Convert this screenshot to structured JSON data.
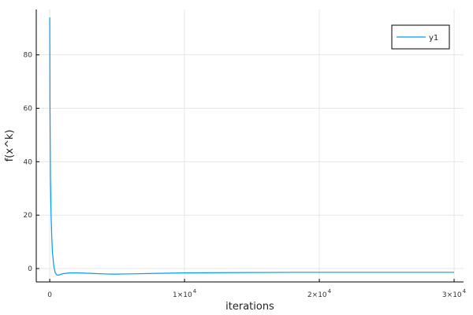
{
  "chart_data": {
    "type": "line",
    "title": "",
    "xlabel": "iterations",
    "ylabel": "f(x^k)",
    "xlim": [
      -1000,
      30700
    ],
    "ylim": [
      -5,
      97
    ],
    "grid": true,
    "legend": {
      "placement": "top-right",
      "entries": [
        "y1"
      ]
    },
    "x_ticks": [
      {
        "value": 0,
        "label": "0"
      },
      {
        "value": 10000,
        "label": "1×10",
        "exp": "4"
      },
      {
        "value": 20000,
        "label": "2×10",
        "exp": "4"
      },
      {
        "value": 30000,
        "label": "3×10",
        "exp": "4"
      }
    ],
    "y_ticks": [
      {
        "value": 0,
        "label": "0"
      },
      {
        "value": 20,
        "label": "20"
      },
      {
        "value": 40,
        "label": "40"
      },
      {
        "value": 60,
        "label": "60"
      },
      {
        "value": 80,
        "label": "80"
      }
    ],
    "series": [
      {
        "name": "y1",
        "color": "#009af9",
        "x": [
          0,
          20,
          50,
          100,
          150,
          200,
          300,
          400,
          500,
          600,
          800,
          1000,
          1500,
          2000,
          3000,
          4000,
          4700,
          6000,
          8000,
          10000,
          14000,
          18000,
          22000,
          26000,
          30000
        ],
        "y": [
          94,
          60,
          35,
          20,
          12,
          6,
          1,
          -1.5,
          -2.3,
          -2.5,
          -2.2,
          -1.9,
          -1.6,
          -1.6,
          -1.8,
          -2.0,
          -2.1,
          -2.0,
          -1.8,
          -1.6,
          -1.5,
          -1.4,
          -1.4,
          -1.4,
          -1.4
        ]
      }
    ]
  }
}
